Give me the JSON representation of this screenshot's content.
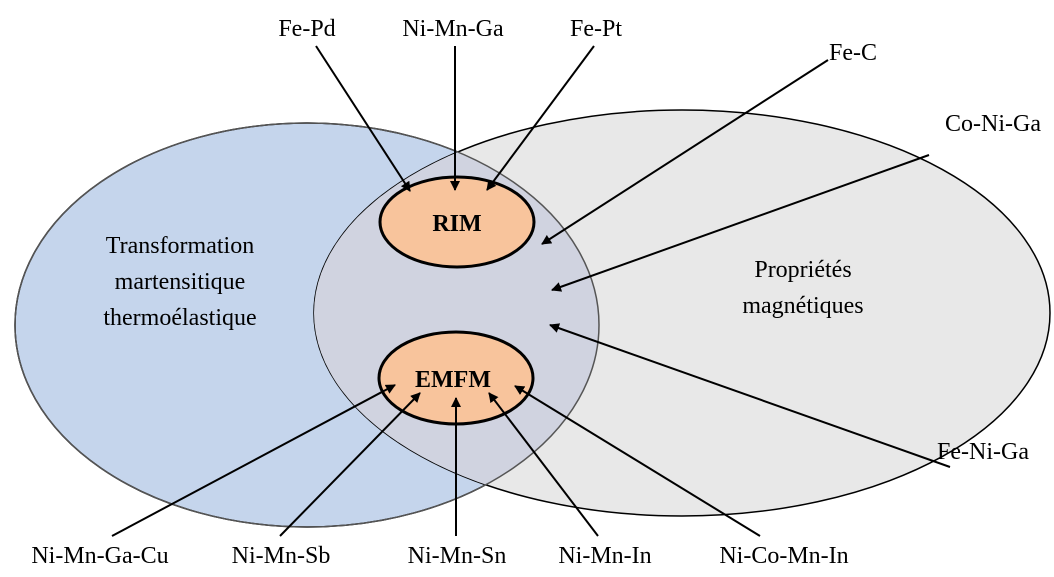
{
  "colors": {
    "left_set": "#c5d5ec",
    "right_set": "#e8e8e8",
    "overlap": "#d0d3e0",
    "subset": "#f8c49c",
    "arrow": "#000000"
  },
  "sets": {
    "left_label": [
      "Transformation",
      "martensitique",
      "thermoélastique"
    ],
    "right_label": [
      "Propriétés",
      "magnétiques"
    ]
  },
  "subsets": {
    "rim": "RIM",
    "emfm": "EMFM"
  },
  "alloys": {
    "fe_pd": "Fe-Pd",
    "ni_mn_ga": "Ni-Mn-Ga",
    "fe_pt": "Fe-Pt",
    "fe_c": "Fe-C",
    "co_ni_ga": "Co-Ni-Ga",
    "fe_ni_ga": "Fe-Ni-Ga",
    "ni_mn_ga_cu": "Ni-Mn-Ga-Cu",
    "ni_mn_sb": "Ni-Mn-Sb",
    "ni_mn_sn": "Ni-Mn-Sn",
    "ni_mn_in": "Ni-Mn-In",
    "ni_co_mn_in": "Ni-Co-Mn-In"
  }
}
